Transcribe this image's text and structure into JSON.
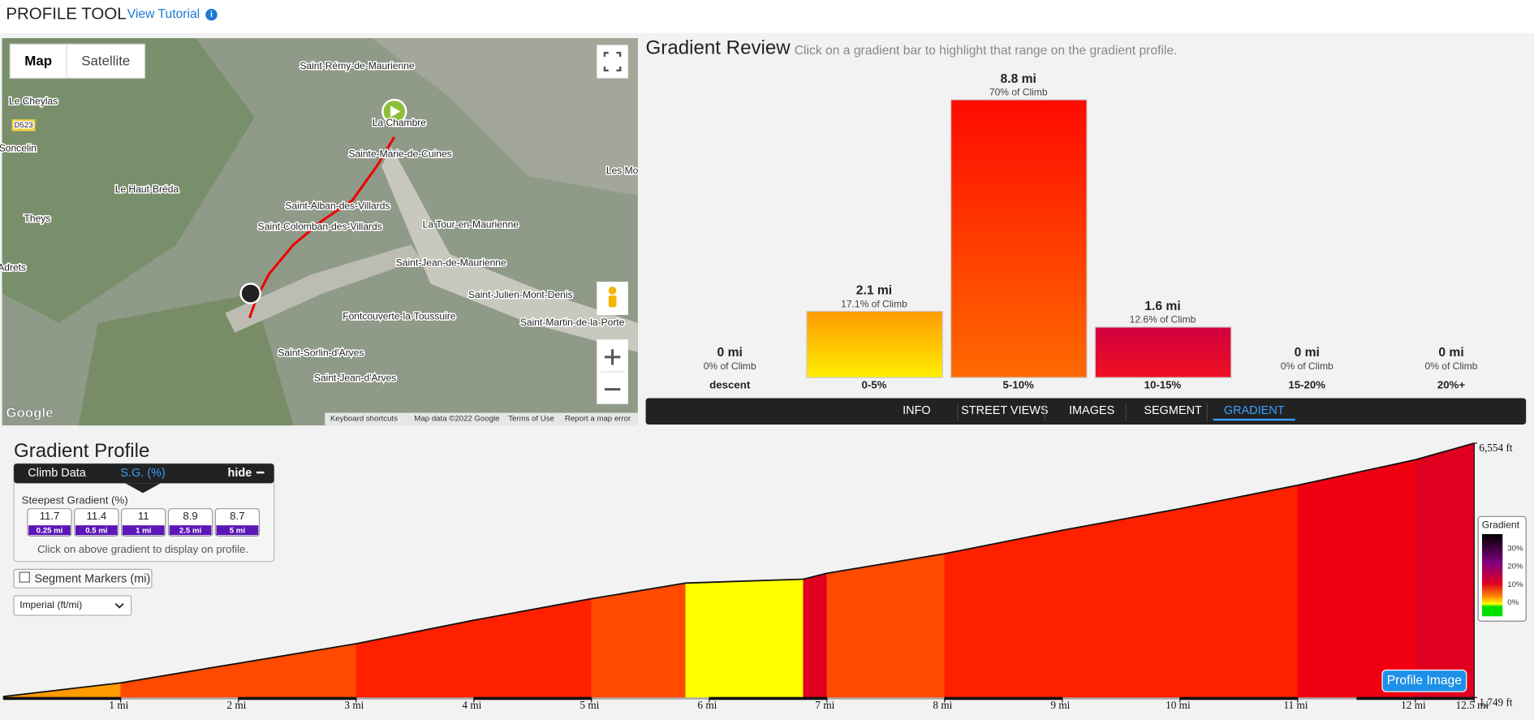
{
  "header": {
    "title": "PROFILE TOOL",
    "link": "View Tutorial"
  },
  "map": {
    "tabs": [
      "Map",
      "Satellite"
    ],
    "places": [
      "Saint-Rémy-de-Maurienne",
      "La Chambre",
      "Sainte-Marie-de-Cuines",
      "Le Cheylas",
      "D523",
      "Soncelin",
      "Le Haut-Bréda",
      "Theys",
      "Saint-Alban-des-Villards",
      "Saint-Colomban-des-Villards",
      "La Tour-en-Maurienne",
      "Saint-Jean-de-Maurienne",
      "Saint-Julien-Mont-Denis",
      "Les Mo",
      "Fontcouverte-la-Toussuire",
      "Saint-Martin-de-la-Porte",
      "Saint-Sorlin-d'Arves",
      "Saint-Jean-d'Arves",
      "Adrets"
    ],
    "attribution": [
      "Keyboard shortcuts",
      "Map data ©2022 Google",
      "Terms of Use",
      "Report a map error"
    ],
    "logo": "Google"
  },
  "gradient_review": {
    "title": "Gradient Review",
    "subtitle": "Click on a gradient bar to highlight that range on the gradient profile.",
    "bars": [
      {
        "category": "descent",
        "value": 0,
        "label": "0 mi",
        "share": "0% of Climb"
      },
      {
        "category": "0-5%",
        "value": 2.1,
        "label": "2.1 mi",
        "share": "17.1% of Climb"
      },
      {
        "category": "5-10%",
        "value": 8.8,
        "label": "8.8 mi",
        "share": "70% of Climb"
      },
      {
        "category": "10-15%",
        "value": 1.6,
        "label": "1.6 mi",
        "share": "12.6% of Climb"
      },
      {
        "category": "15-20%",
        "value": 0,
        "label": "0 mi",
        "share": "0% of Climb"
      },
      {
        "category": "20%+",
        "value": 0,
        "label": "0 mi",
        "share": "0% of Climb"
      }
    ],
    "tabs": [
      "INFO",
      "STREET VIEWS",
      "IMAGES",
      "SEGMENT",
      "GRADIENT"
    ],
    "active_tab": 4
  },
  "gradient_profile": {
    "title": "Gradient Profile",
    "panel": {
      "tabs": [
        "Climb Data",
        "S.G. (%)"
      ],
      "hide": "hide",
      "heading": "Steepest Gradient (%)",
      "values": [
        {
          "value": "11.7",
          "span": "0.25 mi"
        },
        {
          "value": "11.4",
          "span": "0.5 mi"
        },
        {
          "value": "11",
          "span": "1 mi"
        },
        {
          "value": "8.9",
          "span": "2.5 mi"
        },
        {
          "value": "8.7",
          "span": "5 mi"
        }
      ],
      "note": "Click on above gradient to display on profile."
    },
    "segment_markers": "Segment Markers (mi)",
    "units": "Imperial (ft/mi)",
    "legend": {
      "title": "Gradient",
      "labels": [
        "30%",
        "20%",
        "10%",
        "0%"
      ]
    },
    "button": "Profile Image",
    "profile": {
      "xlim": [
        0,
        12.5
      ],
      "xticks": [
        {
          "value": 1,
          "label": "1 mi"
        },
        {
          "value": 2,
          "label": "2 mi"
        },
        {
          "value": 3,
          "label": "3 mi"
        },
        {
          "value": 4,
          "label": "4 mi"
        },
        {
          "value": 5,
          "label": "5 mi"
        },
        {
          "value": 6,
          "label": "6 mi"
        },
        {
          "value": 7,
          "label": "7 mi"
        },
        {
          "value": 8,
          "label": "8 mi"
        },
        {
          "value": 9,
          "label": "9 mi"
        },
        {
          "value": 10,
          "label": "10 mi"
        },
        {
          "value": 11,
          "label": "11 mi"
        },
        {
          "value": 12,
          "label": "12 mi"
        },
        {
          "value": 12.5,
          "label": "12.5 mi"
        }
      ],
      "yticks": [
        {
          "value": 6554,
          "label": "6,554 ft"
        },
        {
          "value": 1749,
          "label": "1,749 ft"
        }
      ],
      "distance": [
        0,
        1,
        2,
        3,
        4,
        5,
        5.8,
        6.8,
        7,
        8,
        9,
        10,
        11,
        12,
        12.5
      ],
      "elevation": [
        1767,
        2026,
        2396,
        2765,
        3209,
        3616,
        3911,
        3985,
        4096,
        4466,
        4909,
        5316,
        5759,
        6240,
        6554
      ]
    }
  }
}
